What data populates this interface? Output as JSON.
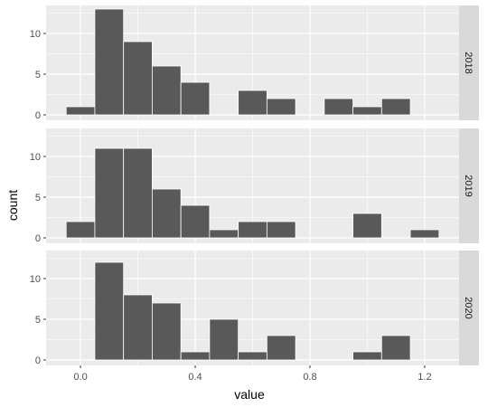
{
  "chart_data": {
    "type": "bar",
    "subtype": "faceted-histogram",
    "xlabel": "value",
    "ylabel": "count",
    "bin_width": 0.1,
    "bin_centers": [
      0.0,
      0.1,
      0.2,
      0.3,
      0.4,
      0.5,
      0.6,
      0.7,
      0.8,
      0.9,
      1.0,
      1.1,
      1.2
    ],
    "xlim": [
      -0.12,
      1.32
    ],
    "ylim": [
      0,
      13.5
    ],
    "x_ticks": [
      0.0,
      0.4,
      0.8,
      1.2
    ],
    "x_tick_labels": [
      "0.0",
      "0.4",
      "0.8",
      "1.2"
    ],
    "y_ticks": [
      0,
      5,
      10
    ],
    "y_tick_labels": [
      "0",
      "5",
      "10"
    ],
    "grid": true,
    "panel_background": "#ebebeb",
    "grid_color": "#ffffff",
    "bar_fill": "#595959",
    "bar_outline": "#ffffff",
    "strip_background": "#d9d9d9",
    "facets": [
      {
        "label": "2018",
        "counts": [
          1,
          13,
          9,
          6,
          4,
          0,
          3,
          2,
          0,
          2,
          1,
          2,
          0
        ]
      },
      {
        "label": "2019",
        "counts": [
          2,
          11,
          11,
          6,
          4,
          1,
          2,
          2,
          0,
          0,
          3,
          0,
          1
        ]
      },
      {
        "label": "2020",
        "counts": [
          0,
          12,
          8,
          7,
          1,
          5,
          1,
          3,
          0,
          0,
          1,
          3,
          0
        ]
      }
    ]
  }
}
